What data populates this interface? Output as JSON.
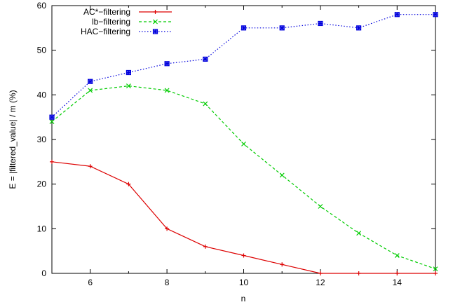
{
  "chart_data": {
    "type": "line",
    "xlabel": "n",
    "ylabel": "E = |filtered_value| / m  (%)",
    "xlim": [
      5,
      15
    ],
    "ylim": [
      0,
      60
    ],
    "xticks": [
      6,
      8,
      10,
      12,
      14
    ],
    "yticks": [
      0,
      10,
      20,
      30,
      40,
      50,
      60
    ],
    "grid": false,
    "legend_position": "top-left",
    "x": [
      5,
      6,
      7,
      8,
      9,
      10,
      11,
      12,
      13,
      14,
      15
    ],
    "series": [
      {
        "name": "AC*−filtering",
        "color": "#dd0000",
        "dash": "solid",
        "marker": "plus",
        "values": [
          25,
          24,
          20,
          10,
          6,
          4,
          2,
          0,
          0,
          0,
          0
        ]
      },
      {
        "name": "lb−filtering",
        "color": "#00cc00",
        "dash": "dashed",
        "marker": "cross",
        "values": [
          34,
          41,
          42,
          41,
          38,
          29,
          22,
          15,
          9,
          4,
          1
        ]
      },
      {
        "name": "HAC−filtering",
        "color": "#0000dd",
        "dash": "dotted",
        "marker": "square-star",
        "values": [
          35,
          43,
          45,
          47,
          48,
          55,
          55,
          56,
          55,
          58,
          58
        ]
      }
    ]
  }
}
